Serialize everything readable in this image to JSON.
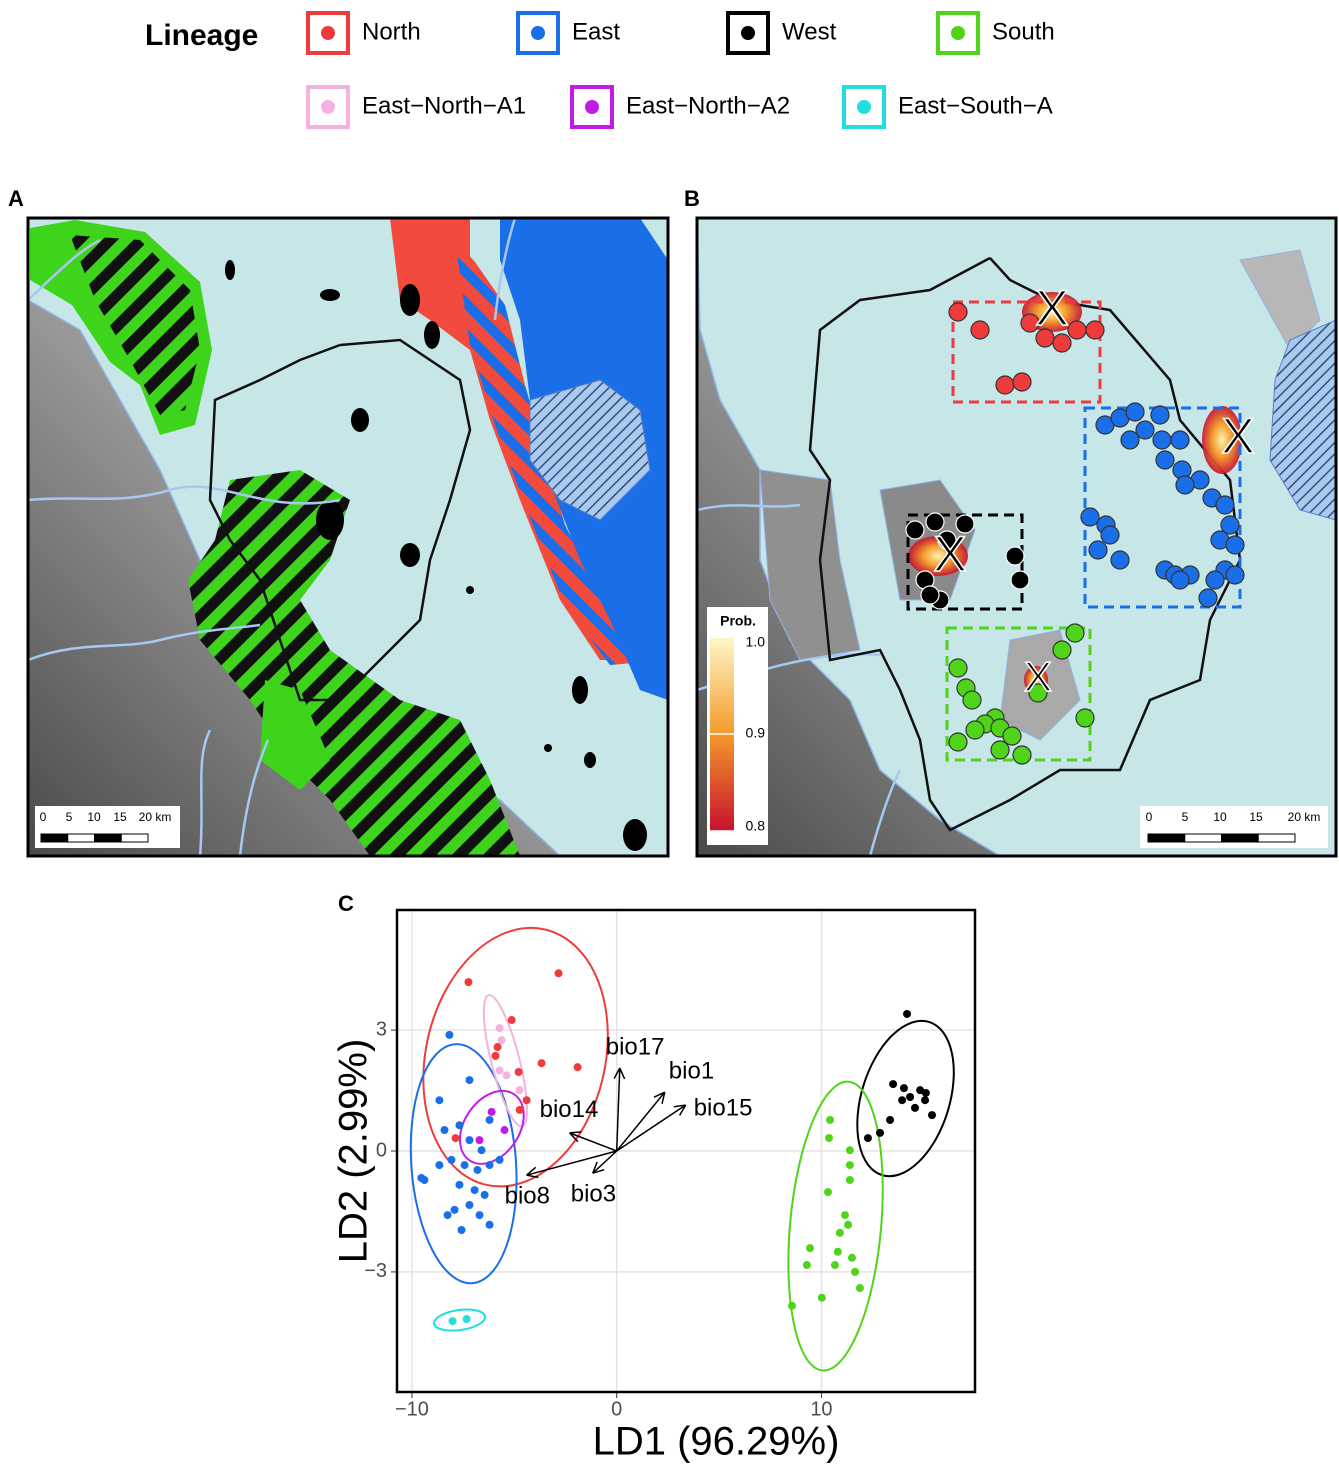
{
  "legend": {
    "title": "Lineage"
  },
  "panels": {
    "a": "A",
    "b": "B",
    "c": "C"
  },
  "maps": {
    "scale_labels": [
      "0",
      "5",
      "10",
      "15",
      "20 km"
    ],
    "marker": "X",
    "colorbar": {
      "title": "Prob.",
      "lim": [
        0.8,
        1
      ],
      "ticks": [
        {
          "value": 1,
          "label": "1.0"
        },
        0.9,
        0.8
      ],
      "colors": [
        "#c8102e",
        "#f39a2b",
        "#fff8c8"
      ]
    }
  },
  "chart_data": {
    "type": "scatter",
    "x_label": "LD1 (96.29%)",
    "y_label": "LD2 (2.99%)",
    "xlim": [
      -10.73,
      17.5
    ],
    "ylim": [
      -5.98,
      5.98
    ],
    "xticks": [
      {
        "value": -10,
        "label": "−10"
      },
      0,
      10
    ],
    "yticks": [
      {
        "value": -3,
        "label": "−3"
      },
      0,
      3
    ],
    "grid": true,
    "ellipses": true,
    "series": [
      {
        "name": "North",
        "color": "#ef3b3b",
        "x": [
          -7.24,
          -2.84,
          -5.82,
          -5.92,
          -4.79,
          -3.67,
          -1.91,
          -4.4,
          -4.74,
          -7.87,
          -5.13
        ],
        "y": [
          4.19,
          4.41,
          2.58,
          2.36,
          1.96,
          2.18,
          2.08,
          1.26,
          1.02,
          0.32,
          3.25
        ]
      },
      {
        "name": "East",
        "color": "#1a6fe8",
        "x": [
          -8.17,
          -7.19,
          -8.66,
          -7.68,
          -8.41,
          -7.19,
          -6.21,
          -9.39,
          -9.54,
          -8.66,
          -8.07,
          -7.43,
          -6.8,
          -6.21,
          -5.72,
          -7.68,
          -6.94,
          -6.45,
          -7.19,
          -7.92,
          -6.7,
          -7.58,
          -6.21,
          -8.26,
          -6.6
        ],
        "y": [
          2.88,
          1.76,
          1.26,
          0.64,
          0.52,
          0.27,
          0.77,
          -0.72,
          -0.67,
          -0.35,
          -0.22,
          -0.35,
          -0.47,
          -0.35,
          -0.22,
          -0.84,
          -0.97,
          -1.09,
          -1.34,
          -1.46,
          -1.59,
          -1.96,
          -1.83,
          -1.59,
          0.02
        ]
      },
      {
        "name": "West",
        "color": "#000000",
        "x": [
          14.18,
          12.27,
          12.86,
          13.35,
          13.5,
          14.03,
          14.33,
          14.82,
          15.06,
          15.4,
          14.57,
          13.94,
          15.1
        ],
        "y": [
          3.4,
          0.32,
          0.45,
          0.77,
          1.66,
          1.56,
          1.34,
          1.51,
          1.26,
          0.89,
          1.07,
          1.26,
          1.44
        ]
      },
      {
        "name": "South",
        "color": "#4fd41a",
        "x": [
          10.42,
          10.37,
          11.39,
          11.39,
          10.32,
          11.15,
          11.3,
          10.9,
          9.44,
          11.49,
          10.8,
          9.29,
          10.66,
          11.64,
          11.88,
          10.02,
          8.56,
          11.39
        ],
        "y": [
          0.77,
          0.32,
          -0.35,
          -0.72,
          -1.02,
          -1.59,
          -1.83,
          -2.03,
          -2.41,
          -2.65,
          -2.5,
          -2.83,
          -2.83,
          -3.0,
          -3.4,
          -3.64,
          -3.84,
          0.02
        ]
      },
      {
        "name": "East−North−A1",
        "color": "#f5b1e0",
        "x": [
          -5.72,
          -5.62,
          -5.38,
          -4.74,
          -5.72
        ],
        "y": [
          3.05,
          2.75,
          1.88,
          1.51,
          2.0
        ]
      },
      {
        "name": "East−North−A2",
        "color": "#c21be6",
        "x": [
          -6.11,
          -6.7,
          -5.48
        ],
        "y": [
          0.97,
          0.27,
          0.52
        ]
      },
      {
        "name": "East−South−A",
        "color": "#22dede",
        "x": [
          -8.02,
          -7.33
        ],
        "y": [
          -4.22,
          -4.17
        ]
      }
    ],
    "loadings": [
      {
        "name": "bio17",
        "x": 0.15,
        "y": 2.06
      },
      {
        "name": "bio1",
        "x": 2.35,
        "y": 1.46
      },
      {
        "name": "bio15",
        "x": 3.37,
        "y": 1.14
      },
      {
        "name": "bio14",
        "x": -2.3,
        "y": 0.45
      },
      {
        "name": "bio8",
        "x": -4.4,
        "y": -0.6
      },
      {
        "name": "bio3",
        "x": -1.17,
        "y": -0.55
      }
    ]
  }
}
